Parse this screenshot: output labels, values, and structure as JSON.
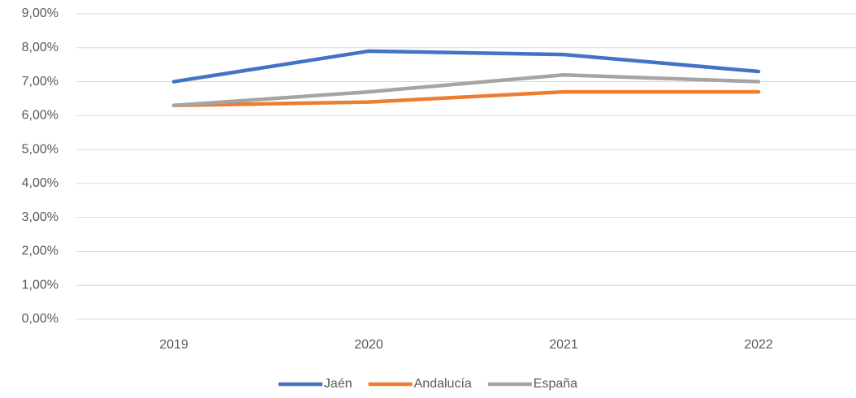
{
  "chart_data": {
    "type": "line",
    "categories": [
      "2019",
      "2020",
      "2021",
      "2022"
    ],
    "series": [
      {
        "name": "Jaén",
        "color": "#4472c4",
        "values": [
          7.0,
          7.9,
          7.8,
          7.3
        ]
      },
      {
        "name": "Andalucía",
        "color": "#ed7d31",
        "values": [
          6.3,
          6.4,
          6.7,
          6.7
        ]
      },
      {
        "name": "España",
        "color": "#a5a5a5",
        "values": [
          6.3,
          6.7,
          7.2,
          7.0
        ]
      }
    ],
    "ylim": [
      0,
      9
    ],
    "yticks": [
      {
        "value": 0,
        "label": "0,00%"
      },
      {
        "value": 1,
        "label": "1,00%"
      },
      {
        "value": 2,
        "label": "2,00%"
      },
      {
        "value": 3,
        "label": "3,00%"
      },
      {
        "value": 4,
        "label": "4,00%"
      },
      {
        "value": 5,
        "label": "5,00%"
      },
      {
        "value": 6,
        "label": "6,00%"
      },
      {
        "value": 7,
        "label": "7,00%"
      },
      {
        "value": 8,
        "label": "8,00%"
      },
      {
        "value": 9,
        "label": "9,00%"
      }
    ],
    "grid": true,
    "legend": "bottom"
  }
}
